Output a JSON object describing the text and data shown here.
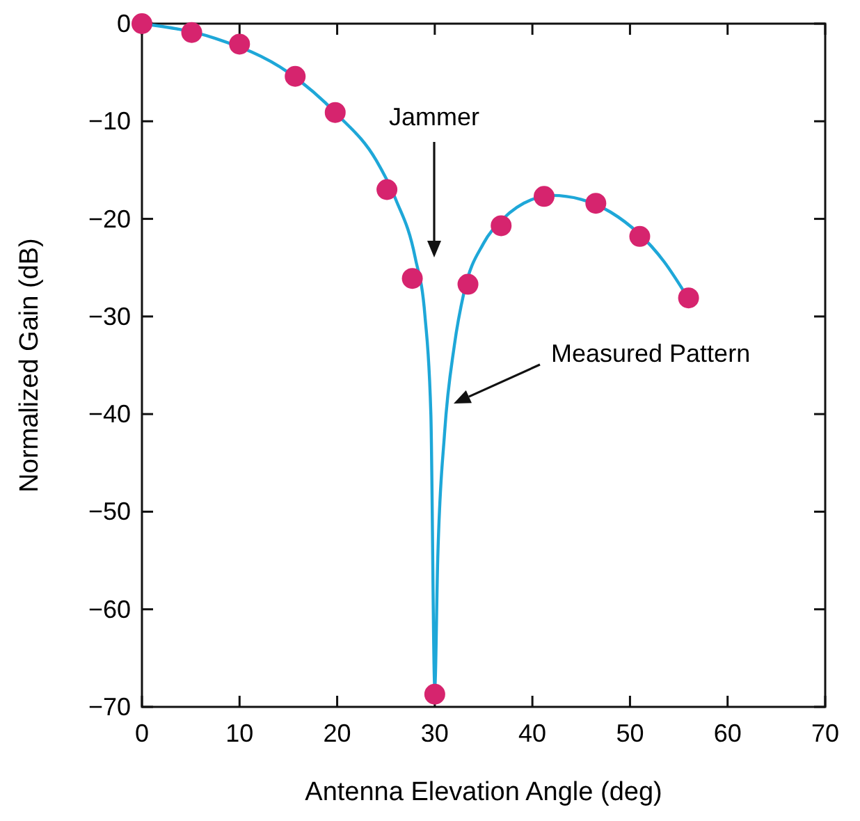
{
  "chart_data": {
    "type": "line",
    "xlabel": "Antenna Elevation Angle (deg)",
    "ylabel": "Normalized Gain (dB)",
    "xlim": [
      0,
      70
    ],
    "ylim": [
      -70,
      0
    ],
    "xticks": [
      0,
      10,
      20,
      30,
      40,
      50,
      60,
      70
    ],
    "yticks": [
      -70,
      -60,
      -50,
      -40,
      -30,
      -20,
      -10,
      0
    ],
    "grid": false,
    "series": [
      {
        "color": "#1ea7d8",
        "marker": "none",
        "x": [
          0,
          7.5,
          15,
          20,
          24,
          26,
          28,
          29,
          29.6,
          30,
          30.3,
          31,
          32,
          33,
          35,
          37,
          40,
          42,
          45,
          48,
          53.5,
          56
        ],
        "values": [
          0,
          -1.5,
          -5,
          -9.3,
          -14,
          -18,
          -24,
          -30,
          -40,
          -68,
          -55,
          -42,
          -33,
          -27.5,
          -22.5,
          -20,
          -18,
          -17.6,
          -18,
          -19.3,
          -24.4,
          -28.2
        ]
      },
      {
        "type": "scatter",
        "color": "#d6246e",
        "marker": "circle",
        "x": [
          0,
          5.1,
          10,
          15.7,
          19.8,
          25.1,
          27.7,
          30,
          33.4,
          36.8,
          41.2,
          46.5,
          51,
          56
        ],
        "values": [
          0,
          -0.9,
          -2.1,
          -5.4,
          -9.1,
          -17,
          -26.1,
          -68.7,
          -26.7,
          -20.7,
          -17.7,
          -18.4,
          -21.8,
          -28.1
        ]
      }
    ],
    "annotations": [
      "Jammer",
      "Measured Pattern"
    ]
  }
}
